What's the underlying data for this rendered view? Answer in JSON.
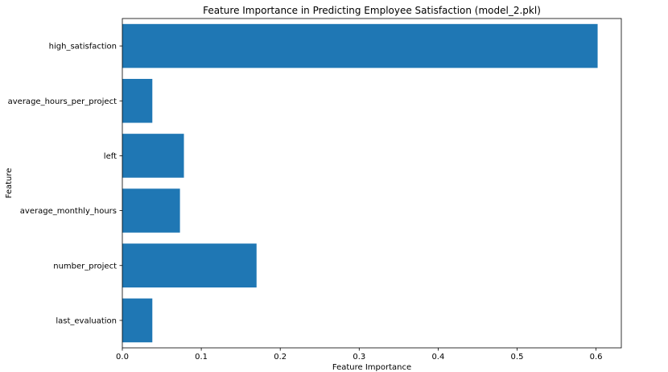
{
  "chart_data": {
    "type": "bar",
    "orientation": "horizontal",
    "title": "Feature Importance in Predicting Employee Satisfaction (model_2.pkl)",
    "xlabel": "Feature Importance",
    "ylabel": "Feature",
    "categories": [
      "high_satisfaction",
      "average_hours_per_project",
      "left",
      "average_monthly_hours",
      "number_project",
      "last_evaluation"
    ],
    "values": [
      0.602,
      0.038,
      0.078,
      0.073,
      0.17,
      0.038
    ],
    "xlim": [
      0,
      0.632
    ],
    "xticks": [
      0.0,
      0.1,
      0.2,
      0.3,
      0.4,
      0.5,
      0.6
    ],
    "xtick_labels": [
      "0.0",
      "0.1",
      "0.2",
      "0.3",
      "0.4",
      "0.5",
      "0.6"
    ],
    "bar_color": "#1f77b4",
    "grid": false,
    "legend": false
  }
}
